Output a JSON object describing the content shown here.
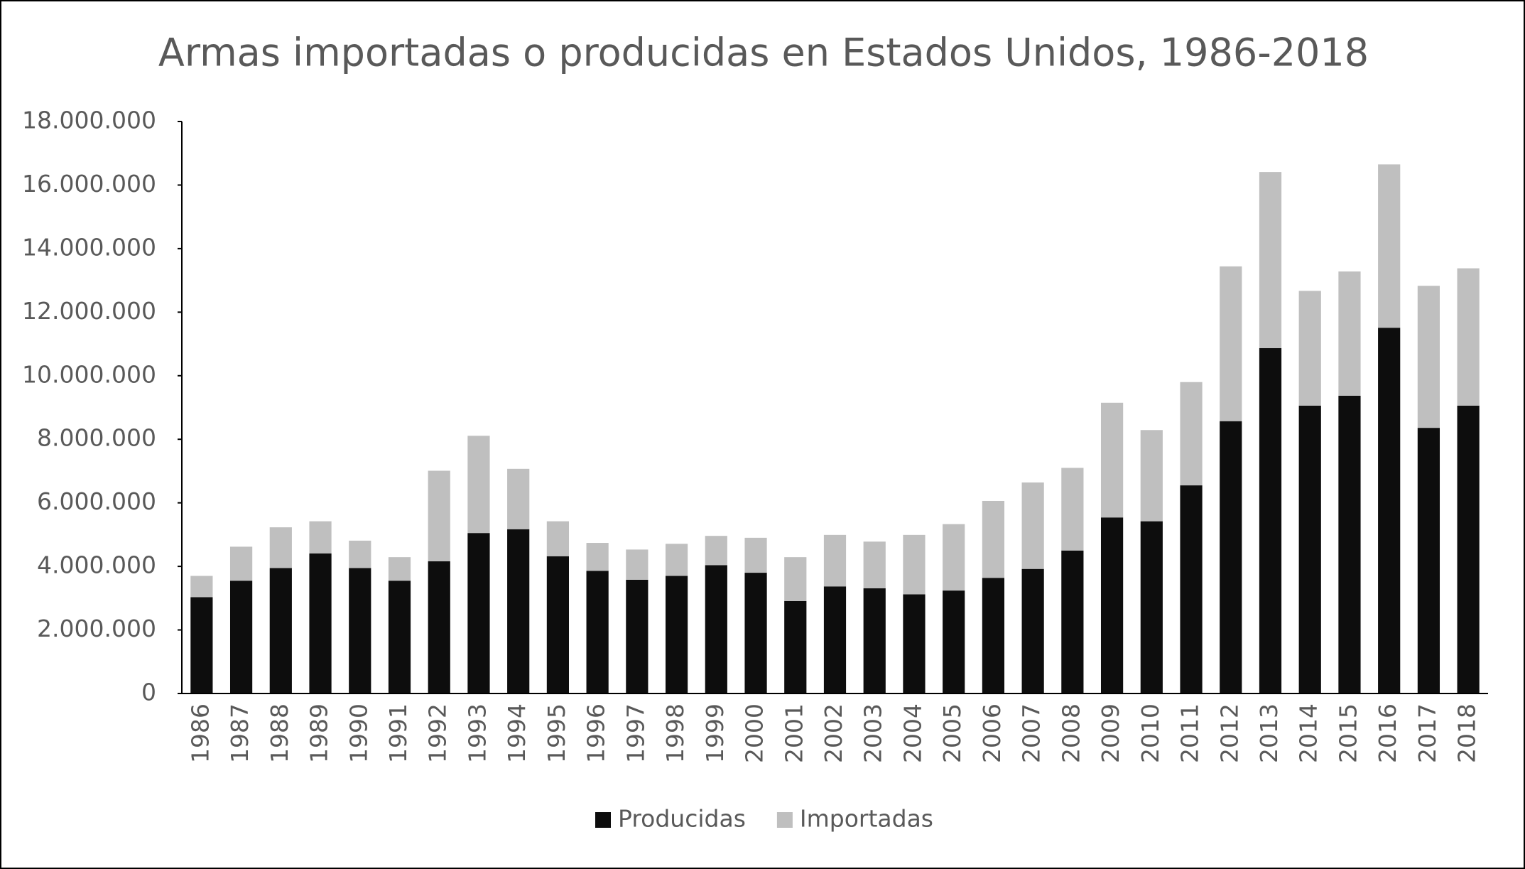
{
  "chart_data": {
    "type": "stacked_bar",
    "title": "Armas importadas o producidas en Estados Unidos, 1986-2018",
    "categories": [
      "1986",
      "1987",
      "1988",
      "1989",
      "1990",
      "1991",
      "1992",
      "1993",
      "1994",
      "1995",
      "1996",
      "1997",
      "1998",
      "1999",
      "2000",
      "2001",
      "2002",
      "2003",
      "2004",
      "2005",
      "2006",
      "2007",
      "2008",
      "2009",
      "2010",
      "2011",
      "2012",
      "2013",
      "2014",
      "2015",
      "2016",
      "2017",
      "2018"
    ],
    "series": [
      {
        "name": "Producidas",
        "color": "#0d0d0d",
        "values": [
          3030000,
          3550000,
          3950000,
          4410000,
          3950000,
          3550000,
          4160000,
          5050000,
          5170000,
          4320000,
          3860000,
          3580000,
          3700000,
          4040000,
          3800000,
          2910000,
          3370000,
          3310000,
          3120000,
          3240000,
          3640000,
          3920000,
          4500000,
          5540000,
          5420000,
          6550000,
          8570000,
          10870000,
          9060000,
          9370000,
          11510000,
          8360000,
          9060000
        ]
      },
      {
        "name": "Importadas",
        "color": "#bfbfbf",
        "values": [
          670000,
          1070000,
          1280000,
          1010000,
          860000,
          740000,
          2850000,
          3060000,
          1900000,
          1100000,
          880000,
          950000,
          1010000,
          920000,
          1100000,
          1380000,
          1620000,
          1470000,
          1870000,
          2090000,
          2420000,
          2720000,
          2600000,
          3610000,
          2870000,
          3250000,
          4870000,
          5540000,
          3610000,
          3910000,
          5140000,
          4470000,
          4320000
        ]
      }
    ],
    "ylim": [
      0,
      18000000
    ],
    "yticks": [
      0,
      {
        "value": 2000000,
        "label": "2.000.000"
      },
      {
        "value": 4000000,
        "label": "4.000.000"
      },
      {
        "value": 6000000,
        "label": "6.000.000"
      },
      {
        "value": 8000000,
        "label": "8.000.000"
      },
      {
        "value": 10000000,
        "label": "10.000.000"
      },
      {
        "value": 12000000,
        "label": "12.000.000"
      },
      {
        "value": 14000000,
        "label": "14.000.000"
      },
      {
        "value": 16000000,
        "label": "16.000.000"
      },
      {
        "value": 18000000,
        "label": "18.000.000"
      }
    ],
    "legend": "bottom"
  }
}
